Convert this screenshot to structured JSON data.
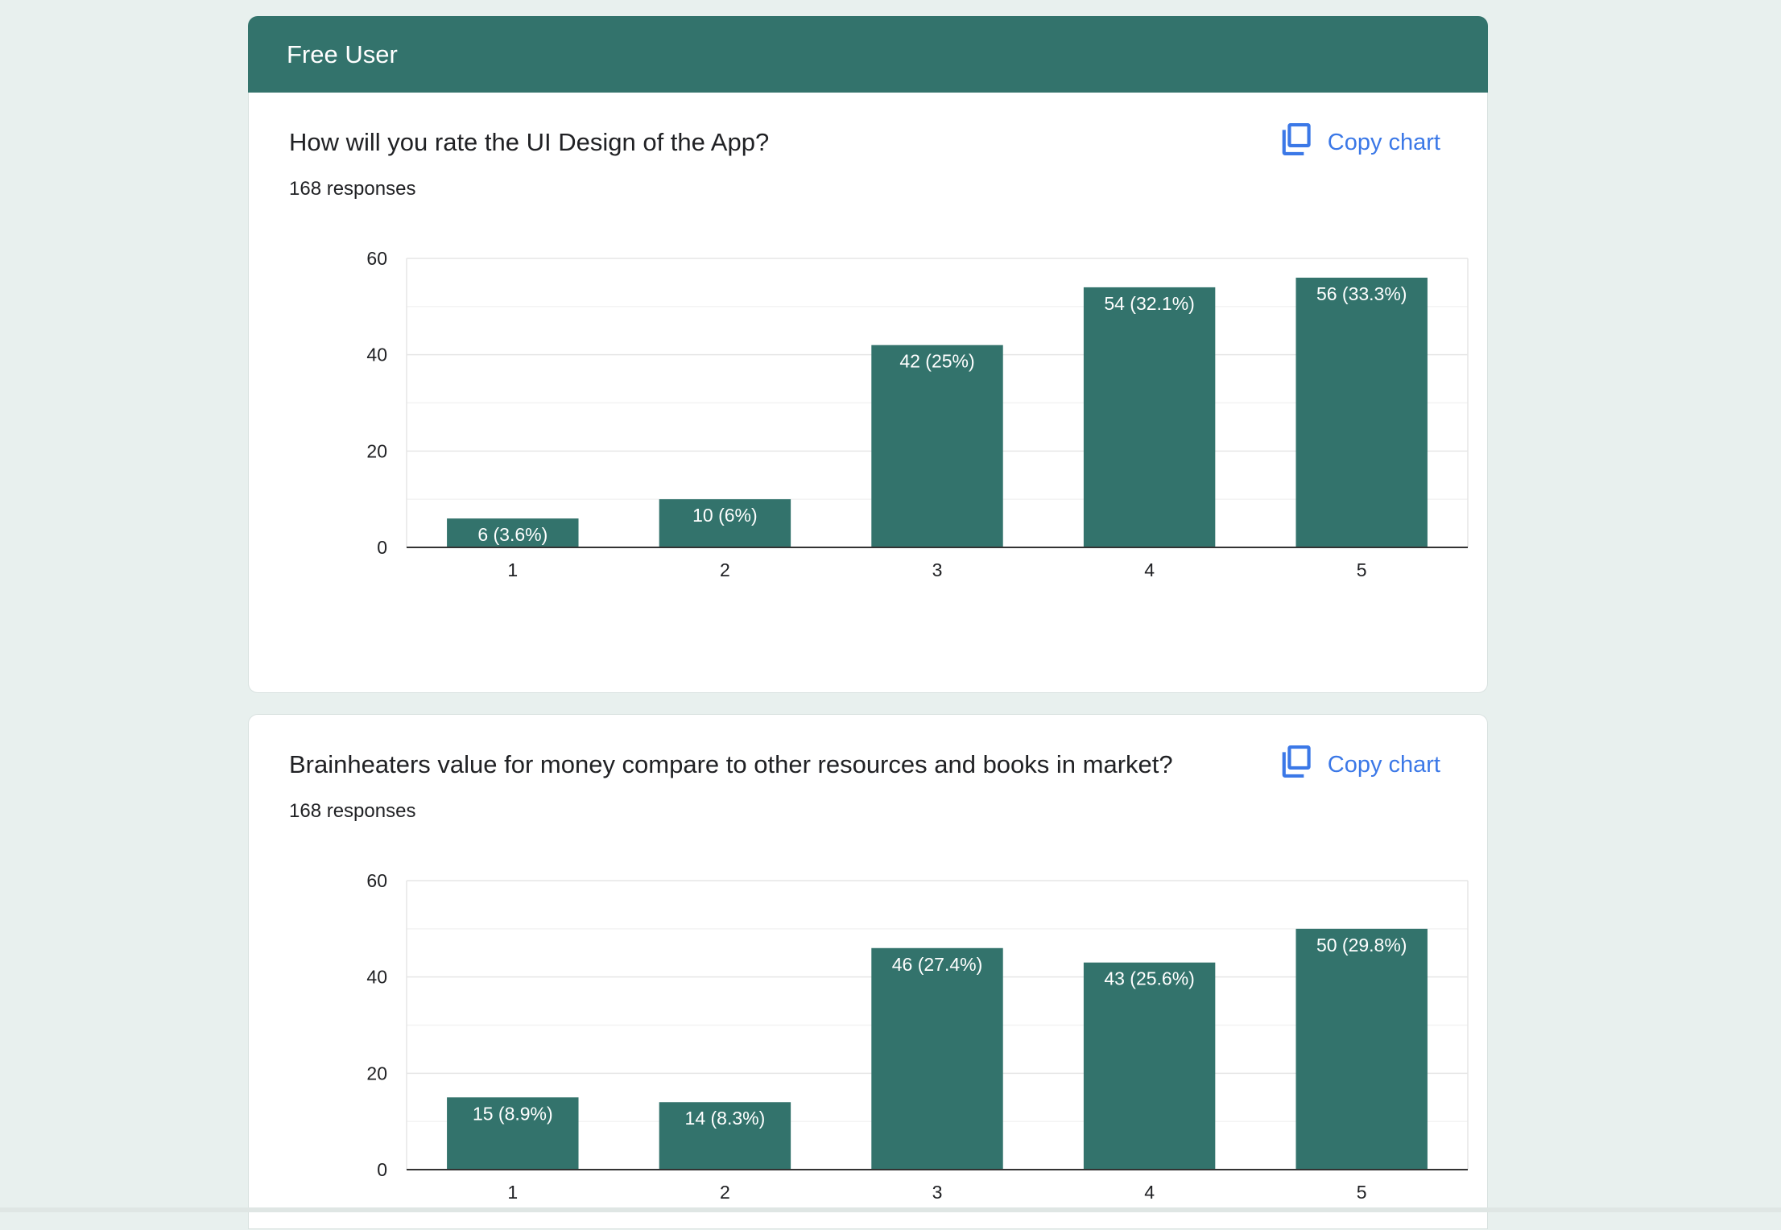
{
  "header": {
    "title": "Free User"
  },
  "copy_label": "Copy chart",
  "colors": {
    "accent": "#33736c",
    "link": "#3b78e7",
    "background": "#e8f0ee"
  },
  "chart_data": [
    {
      "type": "bar",
      "title": "How will you rate the UI Design of the App?",
      "subtitle": "168 responses",
      "categories": [
        "1",
        "2",
        "3",
        "4",
        "5"
      ],
      "values": [
        6,
        10,
        42,
        54,
        56
      ],
      "data_labels": [
        "6 (3.6%)",
        "10 (6%)",
        "42 (25%)",
        "54 (32.1%)",
        "56 (33.3%)"
      ],
      "yticks": [
        "0",
        "20",
        "40",
        "60"
      ],
      "ylim": [
        0,
        60
      ],
      "xlabel": "",
      "ylabel": ""
    },
    {
      "type": "bar",
      "title": "Brainheaters value for money compare to other resources and books in market?",
      "subtitle": "168 responses",
      "categories": [
        "1",
        "2",
        "3",
        "4",
        "5"
      ],
      "values": [
        15,
        14,
        46,
        43,
        50
      ],
      "data_labels": [
        "15 (8.9%)",
        "14 (8.3%)",
        "46 (27.4%)",
        "43 (25.6%)",
        "50 (29.8%)"
      ],
      "yticks": [
        "0",
        "20",
        "40",
        "60"
      ],
      "ylim": [
        0,
        60
      ],
      "xlabel": "",
      "ylabel": ""
    }
  ]
}
